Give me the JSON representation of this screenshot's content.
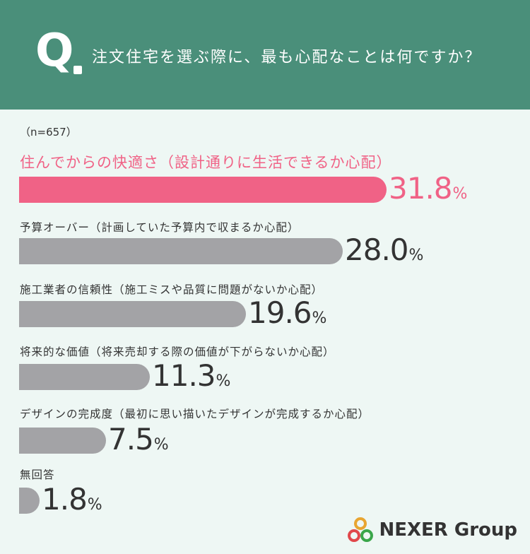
{
  "header": {
    "q_letter": "Q",
    "question": "注文住宅を選ぶ際に、最も心配なことは何ですか？"
  },
  "sample": "（n=657）",
  "colors": {
    "header_bg": "#4a8f7a",
    "page_bg": "#eef7f4",
    "highlight": "#f06286",
    "bar": "#a3a3a6",
    "text": "#333333"
  },
  "chart_data": {
    "type": "bar",
    "orientation": "horizontal",
    "categories": [
      "住んでからの快適さ（設計通りに生活できるか心配）",
      "予算オーバー（計画していた予算内で収まるか心配）",
      "施工業者の信頼性（施工ミスや品質に問題がないか心配）",
      "将来的な価値（将来売却する際の価値が下がらないか心配）",
      "デザインの完成度（最初に思い描いたデザインが完成するか心配）",
      "無回答"
    ],
    "values": [
      31.8,
      28.0,
      19.6,
      11.3,
      7.5,
      1.8
    ],
    "value_labels": [
      "31.8",
      "28.0",
      "19.6",
      "11.3",
      "7.5",
      "1.8"
    ],
    "unit": "%",
    "highlight_index": 0
  },
  "logo": {
    "text": "NEXER Group",
    "ring_colors": [
      "#e8a531",
      "#e0484b",
      "#3aa64a"
    ]
  }
}
